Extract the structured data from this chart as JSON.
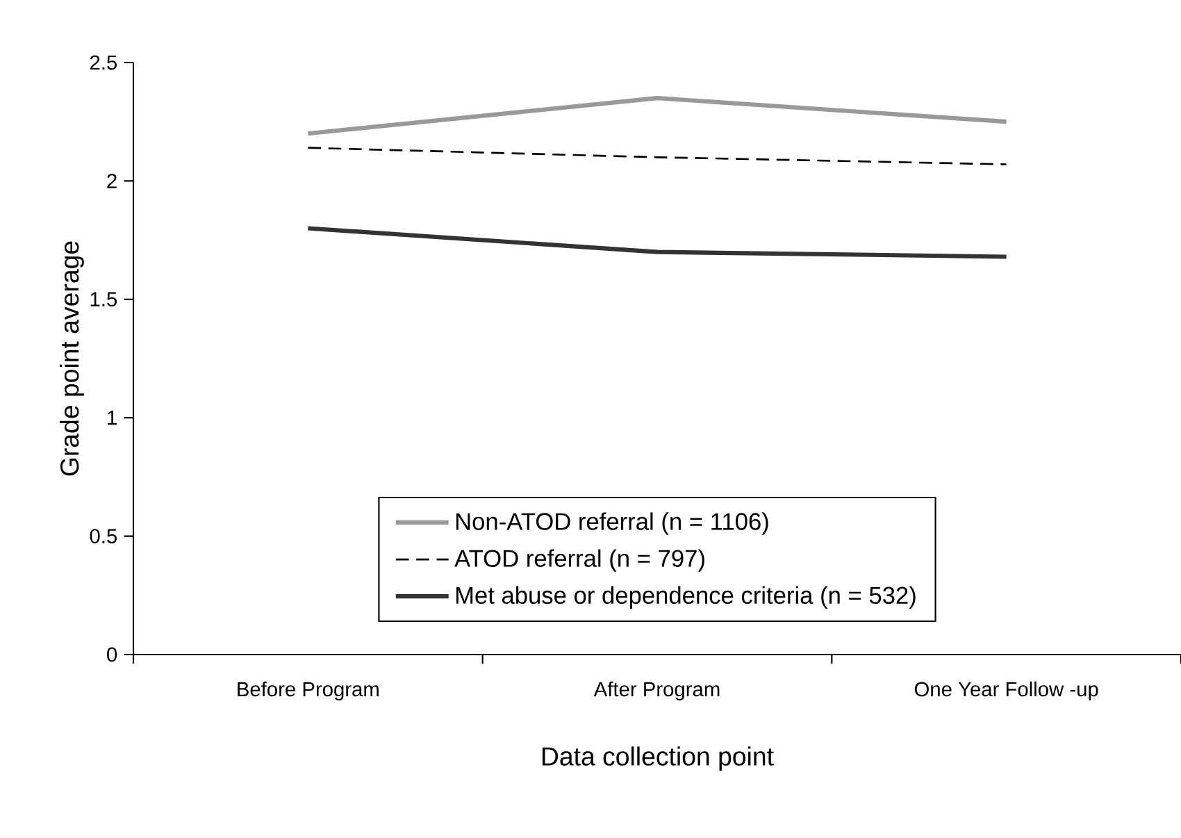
{
  "chart_data": {
    "type": "line",
    "xlabel": "Data collection point",
    "ylabel": "Grade point average",
    "categories": [
      "Before Program",
      "After Program",
      "One Year Follow -up"
    ],
    "series": [
      {
        "name": "Non-ATOD referral (n = 1106)",
        "color": "#999999",
        "line_style": "solid",
        "values": [
          2.2,
          2.35,
          2.25
        ]
      },
      {
        "name": "ATOD referral (n = 797)",
        "color": "#000000",
        "line_style": "dashed",
        "values": [
          2.14,
          2.1,
          2.07
        ]
      },
      {
        "name": "Met abuse or dependence criteria (n = 532)",
        "color": "#333333",
        "line_style": "solid",
        "values": [
          1.8,
          1.7,
          1.68
        ]
      }
    ],
    "ylim": [
      0,
      2.5
    ],
    "yticks": [
      0,
      0.5,
      1,
      1.5,
      2,
      2.5
    ],
    "grid": false,
    "legend": "bottom",
    "marker": "none"
  }
}
